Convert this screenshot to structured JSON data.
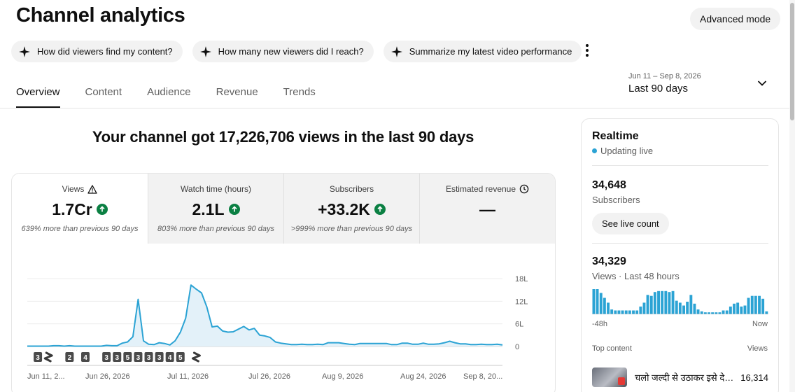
{
  "header": {
    "title": "Channel analytics",
    "advanced_label": "Advanced mode"
  },
  "suggestions": [
    {
      "label": "How did viewers find my content?"
    },
    {
      "label": "How many new viewers did I reach?"
    },
    {
      "label": "Summarize my latest video performance"
    }
  ],
  "tabs": [
    {
      "label": "Overview",
      "active": true
    },
    {
      "label": "Content",
      "active": false
    },
    {
      "label": "Audience",
      "active": false
    },
    {
      "label": "Revenue",
      "active": false
    },
    {
      "label": "Trends",
      "active": false
    }
  ],
  "date_range": {
    "range": "Jun 11 – Sep 8, 2026",
    "label": "Last 90 days"
  },
  "headline": "Your channel got 17,226,706 views in the last 90 days",
  "metrics": [
    {
      "label": "Views",
      "value": "1.7Cr",
      "note": "639% more than previous 90 days",
      "icon": "warning-icon",
      "trend": "up"
    },
    {
      "label": "Watch time (hours)",
      "value": "2.1L",
      "note": "803% more than previous 90 days",
      "trend": "up"
    },
    {
      "label": "Subscribers",
      "value": "+33.2K",
      "note": ">999% more than previous 90 days",
      "trend": "up"
    },
    {
      "label": "Estimated revenue",
      "value": "—",
      "note": "",
      "icon": "clock-icon"
    }
  ],
  "colors": {
    "accent": "#2ba3d4",
    "fill": "#e3f1f9",
    "up": "#0b8043"
  },
  "chart_data": {
    "type": "area",
    "series": [
      {
        "values": [
          0.1,
          0.1,
          0.1,
          0.1,
          0.1,
          0.2,
          0.2,
          0.1,
          0.2,
          0.1,
          0.1,
          0.1,
          0.1,
          0.1,
          0.1,
          0.3,
          0.2,
          0.2,
          0.9,
          1.2,
          2.6,
          12.5,
          1.5,
          0.6,
          0.5,
          1,
          0.8,
          0.4,
          1.5,
          3.8,
          7.5,
          16.3,
          15.2,
          14.2,
          10.5,
          5.2,
          5.4,
          4.1,
          3.8,
          3.9,
          4.6,
          5.3,
          4.4,
          4.8,
          3,
          2.8,
          2.4,
          1.2,
          0.9,
          0.7,
          0.5,
          0.5,
          0.6,
          0.5,
          0.5,
          0.6,
          0.5,
          1,
          1,
          1,
          0.8,
          0.6,
          0.5,
          0.8,
          0.8,
          0.8,
          0.8,
          0.8,
          0.8,
          0.5,
          0.5,
          0.9,
          0.9,
          0.6,
          0.6,
          0.9,
          0.6,
          0.6,
          0.7,
          1,
          1.4,
          1,
          0.7,
          0.7,
          0.5,
          0.5,
          0.6,
          0.5,
          0.5,
          0.6,
          0.4
        ]
      }
    ],
    "x_tick_labels": [
      "Jun 11, 2...",
      "Jun 26, 2026",
      "Jul 11, 2026",
      "Jul 26, 2026",
      "Aug 9, 2026",
      "Aug 24, 2026",
      "Sep 8, 20..."
    ],
    "y_tick_labels": [
      "18L",
      "12L",
      "6L",
      "0"
    ],
    "ylim": [
      0,
      18
    ],
    "y_unit": "lakh",
    "grid": true,
    "markers": [
      {
        "day": 2,
        "label": "3"
      },
      {
        "day": 4,
        "label": "",
        "icon": "shorts-icon"
      },
      {
        "day": 8,
        "label": "2"
      },
      {
        "day": 11,
        "label": "4"
      },
      {
        "day": 15,
        "label": "3"
      },
      {
        "day": 17,
        "label": "3"
      },
      {
        "day": 19,
        "label": "5"
      },
      {
        "day": 21,
        "label": "3"
      },
      {
        "day": 23,
        "label": "3"
      },
      {
        "day": 25,
        "label": "3"
      },
      {
        "day": 27,
        "label": "4"
      },
      {
        "day": 29,
        "label": "5"
      },
      {
        "day": 32,
        "label": "",
        "icon": "shorts-icon"
      }
    ]
  },
  "realtime": {
    "title": "Realtime",
    "status": "Updating live",
    "subscribers": "34,648",
    "subscribers_label": "Subscribers",
    "live_count_label": "See live count",
    "views": "34,329",
    "views_label": "Views · Last 48 hours",
    "bar_values": [
      26,
      26,
      22,
      17,
      12,
      5,
      4,
      4,
      4,
      4,
      4,
      4,
      4,
      8,
      12,
      20,
      19,
      23,
      24,
      24,
      24,
      23,
      24,
      14,
      12,
      9,
      13,
      20,
      11,
      5,
      3,
      2,
      2,
      2,
      2,
      2,
      4,
      4,
      8,
      11,
      12,
      8,
      9,
      17,
      19,
      19,
      19,
      16,
      3
    ],
    "axis_start": "-48h",
    "axis_end": "Now",
    "top_content_label": "Top content",
    "top_content_views_label": "Views",
    "top_items": [
      {
        "title": "चलो जल्दी से उठाकर इसे देख लेते हैं",
        "views": "16,314"
      }
    ]
  }
}
